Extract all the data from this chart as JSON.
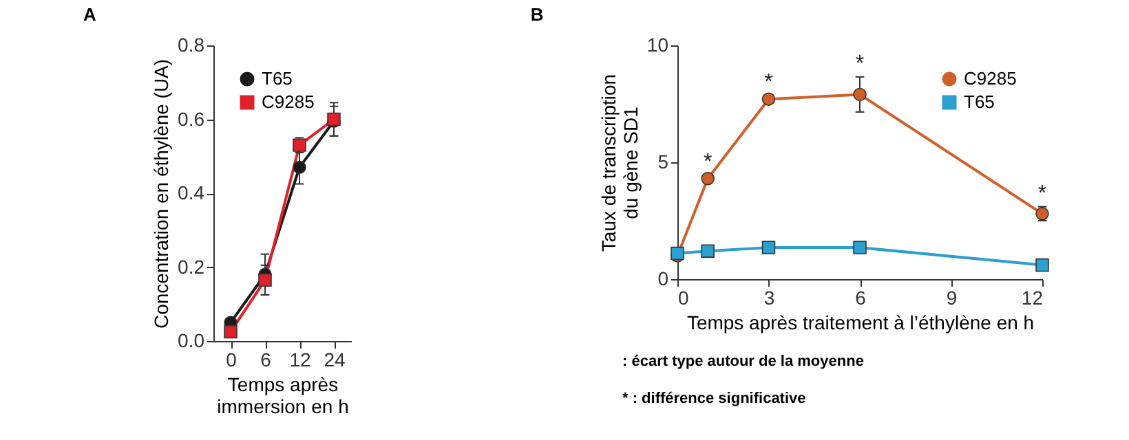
{
  "chart_data": [
    {
      "type": "line",
      "title": "A",
      "xlabel": "Temps après immersion en h",
      "ylabel": "Concentration en éthylène (UA)",
      "categories": [
        "0",
        "6",
        "12",
        "24"
      ],
      "ylim": [
        0,
        0.8
      ],
      "yticks": [
        {
          "value": 0,
          "label": "0.0"
        },
        0.2,
        0.4,
        0.6,
        0.8
      ],
      "legend": "top left",
      "grid": false,
      "series": [
        {
          "name": "T65",
          "color": "#1a1a1a",
          "marker": "circle",
          "values": [
            0.05,
            0.18,
            0.47,
            0.595
          ],
          "errors": [
            0.01,
            0.055,
            0.045,
            0.04
          ]
        },
        {
          "name": "C9285",
          "color": "#e0202a",
          "marker": "square",
          "values": [
            0.025,
            0.165,
            0.53,
            0.6
          ],
          "errors": [
            0.005,
            0.04,
            0.02,
            0.045
          ]
        }
      ]
    },
    {
      "type": "line",
      "title": "B",
      "xlabel": "Temps après traitement à l’éthylène en h",
      "ylabel": "Taux de transcription du gène SD1",
      "xlim": [
        0,
        12
      ],
      "xticks": [
        0,
        3,
        6,
        9,
        12
      ],
      "ylim": [
        0,
        10
      ],
      "yticks": [
        0,
        5,
        10
      ],
      "legend": "top right",
      "grid": false,
      "series": [
        {
          "name": "C9285",
          "color": "#d0602a",
          "marker": "circle",
          "x": [
            0,
            1,
            3,
            6,
            12
          ],
          "values": [
            1.0,
            4.3,
            7.7,
            7.9,
            2.8
          ],
          "errors": [
            null,
            0.15,
            0.15,
            0.75,
            0.3
          ]
        },
        {
          "name": "T65",
          "color": "#2a9fd0",
          "marker": "square",
          "x": [
            0,
            1,
            3,
            6,
            12
          ],
          "values": [
            1.1,
            1.2,
            1.35,
            1.35,
            0.6
          ],
          "errors": [
            null,
            null,
            null,
            null,
            null
          ]
        }
      ],
      "annotations": [
        {
          "text": "*",
          "x": 1,
          "y": 4.3
        },
        {
          "text": "*",
          "x": 3,
          "y": 7.7
        },
        {
          "text": "*",
          "x": 6,
          "y": 7.9
        },
        {
          "text": "*",
          "x": 12,
          "y": 2.8
        },
        ": écart type autour de la moyenne",
        "* : différence significative"
      ]
    }
  ]
}
